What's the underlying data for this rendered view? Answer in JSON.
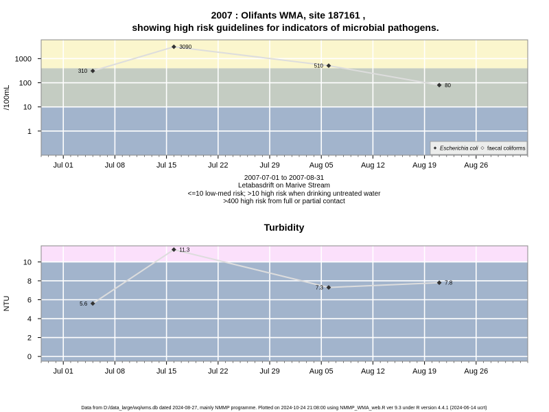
{
  "title_line1": "2007 : Olifants WMA, site 187161 ,",
  "title_line2": "showing high risk guidelines for indicators of microbial pathogens.",
  "x_tick_labels": [
    "Jul 01",
    "Jul 08",
    "Jul 15",
    "Jul 22",
    "Jul 29",
    "Aug 05",
    "Aug 12",
    "Aug 19",
    "Aug 26"
  ],
  "x_tick_dates": [
    "2007-07-01",
    "2007-07-08",
    "2007-07-15",
    "2007-07-22",
    "2007-07-29",
    "2007-08-05",
    "2007-08-12",
    "2007-08-19",
    "2007-08-26"
  ],
  "x_range": [
    "2007-06-28",
    "2007-09-02"
  ],
  "info_lines": [
    "2007-07-01 to 2007-08-31",
    "Letabasdrift on Marive Stream",
    "<=10 low-med risk; >10 high risk when drinking untreated water",
    ">400 high risk from full or partial contact"
  ],
  "footer": "Data from D:/data_large/wq/wms.db dated 2024-08-27, mainly NMMP programme. Plotted on 2024-10-24 21:08:00 using NMMP_WMA_web.R ver 9.3 under R version 4.4.1 (2024-06-14 ucrt)",
  "colors": {
    "low_band": "#a2b4cc",
    "mid_band": "#c4ccc2",
    "high_band": "#fbf6cd",
    "turb_high_band": "#fbe0fb",
    "line": "#dddddd",
    "grid": "#ffffff",
    "point": "#333333"
  },
  "chart_data": [
    {
      "type": "line",
      "title": "",
      "ylabel": "/100mL",
      "y_scale": "log",
      "ylim": [
        0.1,
        6000
      ],
      "y_ticks": [
        1,
        10,
        100,
        1000
      ],
      "y_tick_labels": [
        "1",
        "10",
        "100",
        "1000"
      ],
      "bands": [
        {
          "from": 0.1,
          "to": 10,
          "color": "#a2b4cc"
        },
        {
          "from": 10,
          "to": 400,
          "color": "#c4ccc2"
        },
        {
          "from": 400,
          "to": 6000,
          "color": "#fbf6cd"
        }
      ],
      "legend": [
        "Escherichia coli",
        "faecal coliforms"
      ],
      "legend_position": "bottom-right",
      "series": [
        {
          "name": "Escherichia coli",
          "x": [
            "2007-07-05",
            "2007-07-16",
            "2007-08-06",
            "2007-08-21"
          ],
          "values": [
            310,
            3090,
            510,
            80
          ],
          "labels": [
            "310",
            "3090",
            "510",
            "80"
          ],
          "label_side": [
            "left",
            "right",
            "left",
            "right"
          ]
        }
      ]
    },
    {
      "type": "line",
      "title": "Turbidity",
      "ylabel": "NTU",
      "y_scale": "linear",
      "ylim": [
        -0.5,
        11.7
      ],
      "y_ticks": [
        0,
        2,
        4,
        6,
        8,
        10
      ],
      "y_tick_labels": [
        "0",
        "2",
        "4",
        "6",
        "8",
        "10"
      ],
      "bands": [
        {
          "from": -0.5,
          "to": 10,
          "color": "#a2b4cc"
        },
        {
          "from": 10,
          "to": 11.7,
          "color": "#fbe0fb"
        }
      ],
      "series": [
        {
          "x": [
            "2007-07-05",
            "2007-07-16",
            "2007-08-06",
            "2007-08-21"
          ],
          "values": [
            5.6,
            11.3,
            7.3,
            7.8
          ],
          "labels": [
            "5.6",
            "11.3",
            "7.3",
            "7.8"
          ],
          "label_side": [
            "left",
            "right",
            "left",
            "right"
          ]
        }
      ]
    }
  ]
}
